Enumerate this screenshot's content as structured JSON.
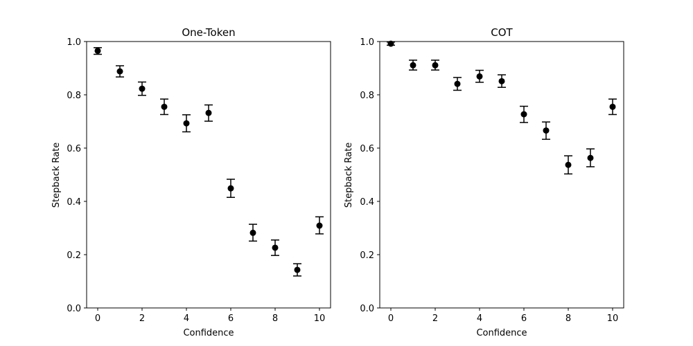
{
  "chart_data": [
    {
      "type": "scatter",
      "title": "One-Token",
      "xlabel": "Confidence",
      "ylabel": "Stepback Rate",
      "xlim": [
        -0.5,
        10.5
      ],
      "ylim": [
        0.0,
        1.0
      ],
      "xticks": [
        "0",
        "2",
        "4",
        "6",
        "8",
        "10"
      ],
      "yticks": [
        "0.0",
        "0.2",
        "0.4",
        "0.6",
        "0.8",
        "1.0"
      ],
      "grid": false,
      "legend": "none",
      "marker_color": "#000000",
      "error_bars": true,
      "points": [
        {
          "x": 0,
          "y": 0.965,
          "err_low": 0.952,
          "err_high": 0.977
        },
        {
          "x": 1,
          "y": 0.888,
          "err_low": 0.867,
          "err_high": 0.909
        },
        {
          "x": 2,
          "y": 0.823,
          "err_low": 0.798,
          "err_high": 0.848
        },
        {
          "x": 3,
          "y": 0.755,
          "err_low": 0.726,
          "err_high": 0.784
        },
        {
          "x": 4,
          "y": 0.693,
          "err_low": 0.661,
          "err_high": 0.725
        },
        {
          "x": 5,
          "y": 0.732,
          "err_low": 0.701,
          "err_high": 0.762
        },
        {
          "x": 6,
          "y": 0.449,
          "err_low": 0.415,
          "err_high": 0.483
        },
        {
          "x": 7,
          "y": 0.282,
          "err_low": 0.251,
          "err_high": 0.314
        },
        {
          "x": 8,
          "y": 0.226,
          "err_low": 0.197,
          "err_high": 0.255
        },
        {
          "x": 9,
          "y": 0.143,
          "err_low": 0.12,
          "err_high": 0.166
        },
        {
          "x": 10,
          "y": 0.309,
          "err_low": 0.278,
          "err_high": 0.342
        }
      ]
    },
    {
      "type": "scatter",
      "title": "COT",
      "xlabel": "Confidence",
      "ylabel": "Stepback Rate",
      "xlim": [
        -0.5,
        10.5
      ],
      "ylim": [
        0.0,
        1.0
      ],
      "xticks": [
        "0",
        "2",
        "4",
        "6",
        "8",
        "10"
      ],
      "yticks": [
        "0.0",
        "0.2",
        "0.4",
        "0.6",
        "0.8",
        "1.0"
      ],
      "grid": false,
      "legend": "none",
      "marker_color": "#000000",
      "error_bars": true,
      "points": [
        {
          "x": 0,
          "y": 0.992,
          "err_low": 0.986,
          "err_high": 0.998
        },
        {
          "x": 1,
          "y": 0.911,
          "err_low": 0.893,
          "err_high": 0.93
        },
        {
          "x": 2,
          "y": 0.911,
          "err_low": 0.893,
          "err_high": 0.93
        },
        {
          "x": 3,
          "y": 0.841,
          "err_low": 0.817,
          "err_high": 0.865
        },
        {
          "x": 4,
          "y": 0.869,
          "err_low": 0.847,
          "err_high": 0.892
        },
        {
          "x": 5,
          "y": 0.851,
          "err_low": 0.828,
          "err_high": 0.875
        },
        {
          "x": 6,
          "y": 0.727,
          "err_low": 0.696,
          "err_high": 0.757
        },
        {
          "x": 7,
          "y": 0.666,
          "err_low": 0.633,
          "err_high": 0.698
        },
        {
          "x": 8,
          "y": 0.537,
          "err_low": 0.503,
          "err_high": 0.571
        },
        {
          "x": 9,
          "y": 0.563,
          "err_low": 0.53,
          "err_high": 0.597
        },
        {
          "x": 10,
          "y": 0.755,
          "err_low": 0.726,
          "err_high": 0.784
        }
      ]
    }
  ]
}
